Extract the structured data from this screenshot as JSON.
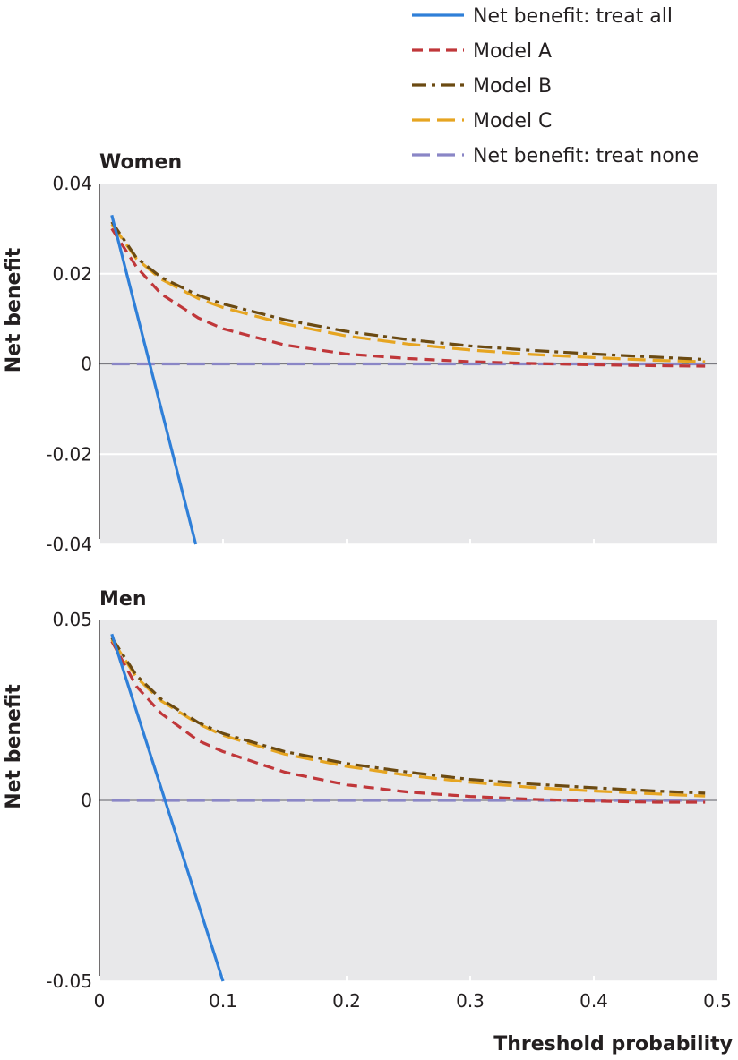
{
  "chart_data": {
    "type": "line",
    "xlabel": "Threshold probability",
    "xlim": [
      0,
      0.5
    ],
    "x_ticks": [
      "0",
      "0.1",
      "0.2",
      "0.3",
      "0.4",
      "0.5"
    ],
    "legend_placement": "top-right",
    "grid": true,
    "legend": [
      {
        "label": "Net benefit: treat all",
        "color": "#2f7fd8",
        "dash": "solid"
      },
      {
        "label": "Model A",
        "color": "#c0373a",
        "dash": "dash"
      },
      {
        "label": "Model B",
        "color": "#6b4a12",
        "dash": "dashdot"
      },
      {
        "label": "Model C",
        "color": "#e6a521",
        "dash": "longdash"
      },
      {
        "label": "Net benefit: treat none",
        "color": "#8a86c6",
        "dash": "longdash"
      }
    ],
    "panels": [
      {
        "title": "Women",
        "ylabel": "Net benefit",
        "ylim": [
          -0.04,
          0.04
        ],
        "y_ticks": [
          "0.04",
          "0.02",
          "0",
          "-0.02",
          "-0.04"
        ],
        "series": [
          {
            "name": "Net benefit: treat all",
            "x": [
              0.01,
              0.078
            ],
            "y": [
              0.033,
              -0.04
            ]
          },
          {
            "name": "Model A",
            "x": [
              0.01,
              0.03,
              0.05,
              0.08,
              0.1,
              0.15,
              0.2,
              0.25,
              0.3,
              0.35,
              0.4,
              0.45,
              0.49
            ],
            "y": [
              0.03,
              0.0215,
              0.0155,
              0.0102,
              0.0078,
              0.0042,
              0.0022,
              0.0012,
              0.0005,
              0.0001,
              -0.0002,
              -0.0004,
              -0.0005
            ]
          },
          {
            "name": "Model B",
            "x": [
              0.01,
              0.03,
              0.05,
              0.08,
              0.1,
              0.15,
              0.2,
              0.25,
              0.3,
              0.35,
              0.4,
              0.45,
              0.49
            ],
            "y": [
              0.0315,
              0.0235,
              0.0192,
              0.0152,
              0.0133,
              0.0098,
              0.0072,
              0.0054,
              0.004,
              0.003,
              0.0022,
              0.0015,
              0.001
            ]
          },
          {
            "name": "Model C",
            "x": [
              0.01,
              0.03,
              0.05,
              0.08,
              0.1,
              0.15,
              0.2,
              0.25,
              0.3,
              0.35,
              0.4,
              0.45,
              0.49
            ],
            "y": [
              0.031,
              0.0233,
              0.0188,
              0.0145,
              0.0125,
              0.0089,
              0.0062,
              0.0044,
              0.0031,
              0.0021,
              0.0014,
              0.0008,
              0.0005
            ]
          },
          {
            "name": "Net benefit: treat none",
            "x": [
              0.01,
              0.49
            ],
            "y": [
              0,
              0
            ]
          }
        ]
      },
      {
        "title": "Men",
        "ylabel": "Net benefit",
        "ylim": [
          -0.05,
          0.05
        ],
        "y_ticks": [
          "0.05",
          "0",
          "-0.05"
        ],
        "series": [
          {
            "name": "Net benefit: treat all",
            "x": [
              0.01,
              0.1
            ],
            "y": [
              0.046,
              -0.05
            ]
          },
          {
            "name": "Model A",
            "x": [
              0.01,
              0.03,
              0.05,
              0.08,
              0.1,
              0.15,
              0.2,
              0.25,
              0.3,
              0.35,
              0.4,
              0.45,
              0.49
            ],
            "y": [
              0.044,
              0.0315,
              0.024,
              0.0165,
              0.0135,
              0.0078,
              0.0043,
              0.0023,
              0.0011,
              0.0003,
              -0.0002,
              -0.0005,
              -0.0005
            ]
          },
          {
            "name": "Model B",
            "x": [
              0.01,
              0.03,
              0.05,
              0.08,
              0.1,
              0.15,
              0.2,
              0.25,
              0.3,
              0.35,
              0.4,
              0.45,
              0.49
            ],
            "y": [
              0.045,
              0.0345,
              0.028,
              0.0215,
              0.0185,
              0.0135,
              0.0102,
              0.0078,
              0.0058,
              0.0045,
              0.0035,
              0.0026,
              0.002
            ]
          },
          {
            "name": "Model C",
            "x": [
              0.01,
              0.03,
              0.05,
              0.08,
              0.1,
              0.15,
              0.2,
              0.25,
              0.3,
              0.35,
              0.4,
              0.45,
              0.49
            ],
            "y": [
              0.0445,
              0.034,
              0.0275,
              0.0212,
              0.018,
              0.0128,
              0.0094,
              0.0069,
              0.005,
              0.0036,
              0.0026,
              0.0018,
              0.0012
            ]
          },
          {
            "name": "Net benefit: treat none",
            "x": [
              0.01,
              0.49
            ],
            "y": [
              0,
              0
            ]
          }
        ]
      }
    ]
  }
}
